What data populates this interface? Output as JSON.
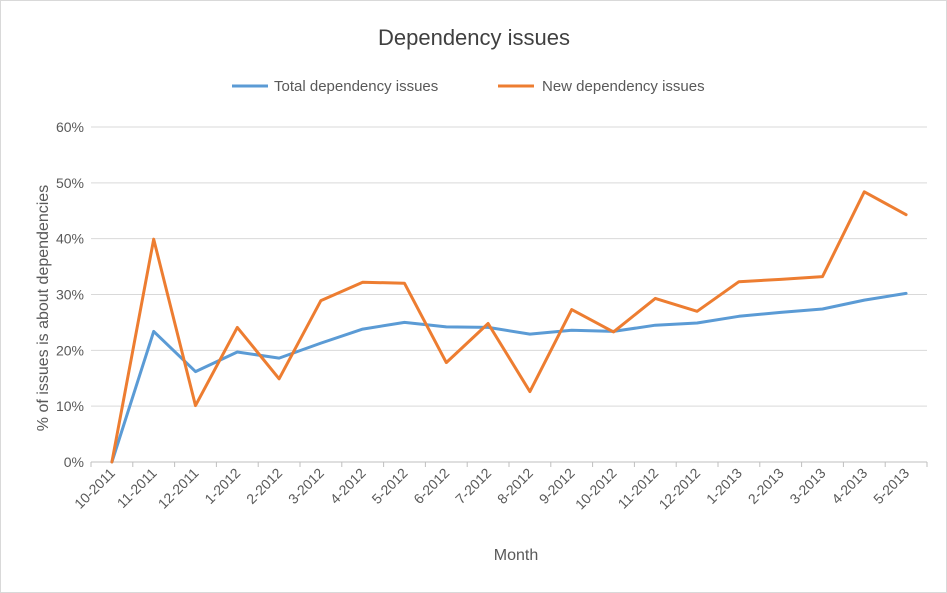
{
  "chart_data": {
    "type": "line",
    "title": "Dependency issues",
    "xlabel": "Month",
    "ylabel": "% of issues is about dependencies",
    "ylim": [
      0,
      0.6
    ],
    "yticks": [
      "0%",
      "10%",
      "20%",
      "30%",
      "40%",
      "50%",
      "60%"
    ],
    "grid": true,
    "legend": "top",
    "categories": [
      "10-2011",
      "11-2011",
      "12-2011",
      "1-2012",
      "2-2012",
      "3-2012",
      "4-2012",
      "5-2012",
      "6-2012",
      "7-2012",
      "8-2012",
      "9-2012",
      "10-2012",
      "11-2012",
      "12-2012",
      "1-2013",
      "2-2013",
      "3-2013",
      "4-2013",
      "5-2013"
    ],
    "series": [
      {
        "name": "Total dependency issues",
        "color": "#5b9bd5",
        "values": [
          0.0,
          0.234,
          0.162,
          0.197,
          0.186,
          0.213,
          0.238,
          0.25,
          0.242,
          0.241,
          0.229,
          0.236,
          0.234,
          0.245,
          0.249,
          0.261,
          0.268,
          0.274,
          0.29,
          0.302
        ]
      },
      {
        "name": "New dependency issues",
        "color": "#ed7d31",
        "values": [
          0.0,
          0.399,
          0.101,
          0.241,
          0.149,
          0.289,
          0.322,
          0.32,
          0.178,
          0.248,
          0.126,
          0.273,
          0.233,
          0.293,
          0.27,
          0.323,
          0.327,
          0.332,
          0.484,
          0.443
        ]
      }
    ]
  }
}
